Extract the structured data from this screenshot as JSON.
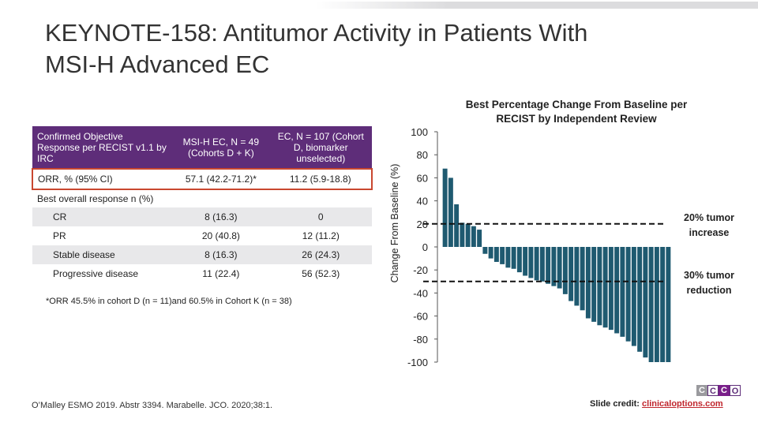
{
  "title_lines": [
    "KEYNOTE-158: Antitumor Activity in Patients With",
    "MSI-H Advanced EC"
  ],
  "table": {
    "headers": [
      "Confirmed Objective Response per RECIST v1.1 by IRC",
      "MSI-H EC, N = 49 (Cohorts D + K)",
      "EC, N = 107 (Cohort D, biomarker unselected)"
    ],
    "rows": [
      {
        "label": "ORR, % (95% CI)",
        "a": "57.1 (42.2-71.2)*",
        "b": "11.2 (5.9-18.8)",
        "style": "orr"
      },
      {
        "label": "Best overall response n (%)",
        "a": "",
        "b": "",
        "style": "sec"
      },
      {
        "label": "CR",
        "a": "8 (16.3)",
        "b": "0",
        "style": "sub shade"
      },
      {
        "label": "PR",
        "a": "20 (40.8)",
        "b": "12 (11.2)",
        "style": "sub"
      },
      {
        "label": "Stable disease",
        "a": "8 (16.3)",
        "b": "26 (24.3)",
        "style": "sub shade"
      },
      {
        "label": "Progressive disease",
        "a": "11 (22.4)",
        "b": "56 (52.3)",
        "style": "sub"
      }
    ],
    "footnote": "*ORR 45.5% in cohort D (n = 11)and 60.5% in Cohort K (n = 38)"
  },
  "citation": "O’Malley ESMO 2019. Abstr 3394. Marabelle. JCO. 2020;38:1.",
  "credit": {
    "prefix": "Slide credit:",
    "link": "clinicaloptions.com"
  },
  "logo": [
    "C",
    "C",
    "C",
    "O"
  ],
  "colors": {
    "bar": "#1f5a70",
    "purple": "#5e2d79",
    "highlight": "#c9472f"
  },
  "chart_data": {
    "type": "bar",
    "title": "Best Percentage Change From Baseline per RECIST by Independent Review",
    "ylabel": "Change From Baseline (%)",
    "ylim": [
      -100,
      100
    ],
    "yticks": [
      100,
      80,
      60,
      40,
      20,
      0,
      -20,
      -40,
      -60,
      -80,
      -100
    ],
    "reference_lines": [
      {
        "y": 20,
        "label_lines": [
          "20% tumor",
          "increase"
        ]
      },
      {
        "y": -30,
        "label_lines": [
          "30% tumor",
          "reduction"
        ]
      }
    ],
    "values": [
      68,
      60,
      37,
      21,
      20,
      18,
      15,
      -6,
      -10,
      -13,
      -15,
      -18,
      -19,
      -22,
      -25,
      -27,
      -29,
      -30,
      -32,
      -34,
      -36,
      -41,
      -47,
      -51,
      -55,
      -62,
      -65,
      -68,
      -70,
      -72,
      -75,
      -78,
      -82,
      -86,
      -91,
      -96,
      -100,
      -100,
      -100,
      -100
    ]
  }
}
